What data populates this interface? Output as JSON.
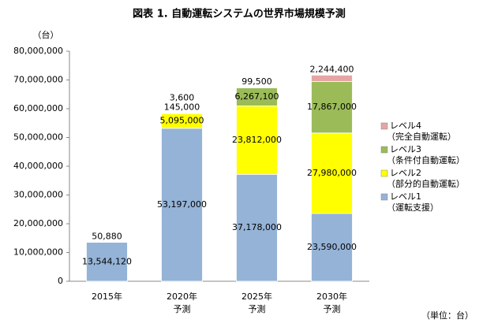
{
  "chart_data": {
    "type": "stacked_bar",
    "title": "図表 1. 自動運転システムの世界市場規模予測",
    "y_unit": "（台）",
    "footnote": "（単位：台）",
    "categories": [
      "2015年",
      "2020年",
      "2025年",
      "2030年"
    ],
    "category_sublabels": [
      null,
      "予測",
      "予測",
      "予測"
    ],
    "ylim": [
      0,
      80000000
    ],
    "yticks": [
      0,
      {
        "value": 10000000,
        "label": "10,000,000"
      },
      {
        "value": 20000000,
        "label": "20,000,000"
      },
      {
        "value": 30000000,
        "label": "30,000,000"
      },
      {
        "value": 40000000,
        "label": "40,000,000"
      },
      {
        "value": 50000000,
        "label": "50,000,000"
      },
      {
        "value": 60000000,
        "label": "60,000,000"
      },
      {
        "value": 70000000,
        "label": "70,000,000"
      },
      {
        "value": 80000000,
        "label": "80,000,000"
      }
    ],
    "series": [
      {
        "name": "レベル1",
        "description": "（運転支援）",
        "color": "#95b3d7",
        "values": [
          13544120,
          53197000,
          37178000,
          23590000
        ],
        "value_labels": [
          "13,544,120",
          "53,197,000",
          "37,178,000",
          "23,590,000"
        ]
      },
      {
        "name": "レベル2",
        "description": "（部分的自動運転）",
        "color": "#ffff00",
        "values": [
          50880,
          5095000,
          23812000,
          27980000
        ],
        "value_labels": [
          "50,880",
          "5,095,000",
          "23,812,000",
          "27,980,000"
        ]
      },
      {
        "name": "レベル3",
        "description": "（条件付自動運転）",
        "color": "#9bbb59",
        "values": [
          null,
          145000,
          6267100,
          17867000
        ],
        "value_labels": [
          null,
          "145,000",
          "6,267,100",
          "17,867,000"
        ]
      },
      {
        "name": "レベル4",
        "description": "（完全自動運転）",
        "color": "#e6a5a5",
        "values": [
          null,
          3600,
          99500,
          2244400
        ],
        "value_labels": [
          null,
          "3,600",
          "99,500",
          "2,244,400"
        ]
      }
    ]
  }
}
